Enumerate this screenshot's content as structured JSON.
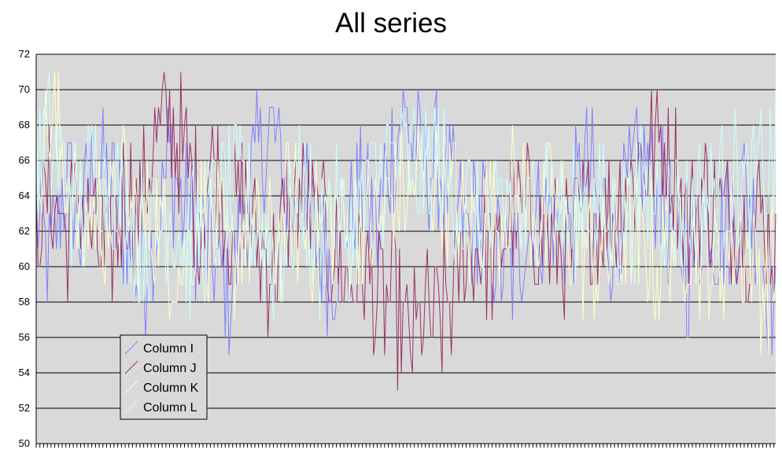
{
  "chart_data": {
    "type": "line",
    "title": "All series",
    "xlabel": "",
    "ylabel": "",
    "ylim": [
      50,
      72
    ],
    "yticks": [
      50,
      52,
      54,
      56,
      58,
      60,
      62,
      64,
      66,
      68,
      70,
      72
    ],
    "grid": true,
    "legend_position": "bottom-left",
    "plot_background": "#d9d9d9",
    "n_points": 400,
    "series": [
      {
        "name": "Column I",
        "color": "#8080ff",
        "keypoints": [
          [
            0,
            63
          ],
          [
            8,
            60
          ],
          [
            16,
            65
          ],
          [
            24,
            62
          ],
          [
            32,
            66
          ],
          [
            40,
            64
          ],
          [
            48,
            62
          ],
          [
            56,
            59
          ],
          [
            64,
            62
          ],
          [
            72,
            66
          ],
          [
            80,
            63
          ],
          [
            88,
            62
          ],
          [
            96,
            60
          ],
          [
            104,
            58
          ],
          [
            112,
            63
          ],
          [
            120,
            66
          ],
          [
            128,
            68
          ],
          [
            136,
            63
          ],
          [
            144,
            64
          ],
          [
            152,
            61
          ],
          [
            160,
            60
          ],
          [
            168,
            63
          ],
          [
            176,
            64
          ],
          [
            184,
            62
          ],
          [
            192,
            67
          ],
          [
            200,
            68
          ],
          [
            208,
            66
          ],
          [
            216,
            66
          ],
          [
            224,
            64
          ],
          [
            232,
            62
          ],
          [
            240,
            63
          ],
          [
            248,
            61
          ],
          [
            256,
            59
          ],
          [
            264,
            62
          ],
          [
            272,
            63
          ],
          [
            280,
            63
          ],
          [
            288,
            62
          ],
          [
            296,
            66
          ],
          [
            304,
            63
          ],
          [
            312,
            62
          ],
          [
            320,
            64
          ],
          [
            328,
            66
          ],
          [
            336,
            64
          ],
          [
            344,
            62
          ],
          [
            352,
            60
          ],
          [
            360,
            63
          ],
          [
            368,
            62
          ],
          [
            376,
            63
          ],
          [
            384,
            64
          ],
          [
            392,
            61
          ],
          [
            399,
            57
          ]
        ]
      },
      {
        "name": "Column J",
        "color": "#993366",
        "keypoints": [
          [
            0,
            62
          ],
          [
            8,
            64
          ],
          [
            16,
            62
          ],
          [
            24,
            64
          ],
          [
            32,
            61
          ],
          [
            40,
            60
          ],
          [
            48,
            64
          ],
          [
            56,
            63
          ],
          [
            64,
            67
          ],
          [
            72,
            68
          ],
          [
            80,
            66
          ],
          [
            88,
            63
          ],
          [
            96,
            66
          ],
          [
            104,
            62
          ],
          [
            112,
            64
          ],
          [
            120,
            61
          ],
          [
            128,
            60
          ],
          [
            136,
            63
          ],
          [
            144,
            64
          ],
          [
            152,
            62
          ],
          [
            160,
            61
          ],
          [
            168,
            59
          ],
          [
            176,
            60
          ],
          [
            184,
            58
          ],
          [
            192,
            58
          ],
          [
            200,
            56
          ],
          [
            208,
            56.5
          ],
          [
            216,
            57
          ],
          [
            224,
            58
          ],
          [
            232,
            61
          ],
          [
            240,
            61
          ],
          [
            248,
            60
          ],
          [
            256,
            63
          ],
          [
            264,
            63
          ],
          [
            272,
            62
          ],
          [
            280,
            61
          ],
          [
            288,
            61
          ],
          [
            296,
            63
          ],
          [
            304,
            63
          ],
          [
            312,
            63
          ],
          [
            320,
            65
          ],
          [
            328,
            66
          ],
          [
            336,
            67
          ],
          [
            344,
            66
          ],
          [
            352,
            62
          ],
          [
            360,
            64
          ],
          [
            368,
            63
          ],
          [
            376,
            63
          ],
          [
            384,
            62
          ],
          [
            392,
            63
          ],
          [
            399,
            61
          ]
        ]
      },
      {
        "name": "Column K",
        "color": "#ffffcc",
        "keypoints": [
          [
            0,
            66
          ],
          [
            8,
            68
          ],
          [
            16,
            66
          ],
          [
            24,
            62
          ],
          [
            32,
            63
          ],
          [
            40,
            63
          ],
          [
            48,
            64
          ],
          [
            56,
            62
          ],
          [
            64,
            63
          ],
          [
            72,
            61
          ],
          [
            80,
            60
          ],
          [
            88,
            63
          ],
          [
            96,
            62
          ],
          [
            104,
            60
          ],
          [
            112,
            62
          ],
          [
            120,
            61
          ],
          [
            128,
            61
          ],
          [
            136,
            63
          ],
          [
            144,
            62
          ],
          [
            152,
            62
          ],
          [
            160,
            63
          ],
          [
            168,
            62
          ],
          [
            176,
            63
          ],
          [
            184,
            62
          ],
          [
            192,
            64
          ],
          [
            200,
            64
          ],
          [
            208,
            65
          ],
          [
            216,
            65
          ],
          [
            224,
            64
          ],
          [
            232,
            62
          ],
          [
            240,
            63
          ],
          [
            248,
            63
          ],
          [
            256,
            64
          ],
          [
            264,
            64
          ],
          [
            272,
            62
          ],
          [
            280,
            63
          ],
          [
            288,
            62
          ],
          [
            296,
            61
          ],
          [
            304,
            60
          ],
          [
            312,
            61
          ],
          [
            320,
            62
          ],
          [
            328,
            61
          ],
          [
            336,
            60
          ],
          [
            344,
            62
          ],
          [
            352,
            62
          ],
          [
            360,
            61
          ],
          [
            368,
            60
          ],
          [
            376,
            62
          ],
          [
            384,
            61
          ],
          [
            392,
            59
          ],
          [
            399,
            60
          ]
        ]
      },
      {
        "name": "Column L",
        "color": "#ccffff",
        "keypoints": [
          [
            0,
            66
          ],
          [
            8,
            67
          ],
          [
            16,
            65
          ],
          [
            24,
            63
          ],
          [
            32,
            66
          ],
          [
            40,
            65
          ],
          [
            48,
            63
          ],
          [
            56,
            62
          ],
          [
            64,
            62
          ],
          [
            72,
            63
          ],
          [
            80,
            61
          ],
          [
            88,
            62
          ],
          [
            96,
            63
          ],
          [
            104,
            64
          ],
          [
            112,
            64
          ],
          [
            120,
            62
          ],
          [
            128,
            60
          ],
          [
            136,
            62
          ],
          [
            144,
            64
          ],
          [
            152,
            61
          ],
          [
            160,
            63
          ],
          [
            168,
            62
          ],
          [
            176,
            63
          ],
          [
            184,
            65
          ],
          [
            192,
            66
          ],
          [
            200,
            66
          ],
          [
            208,
            65
          ],
          [
            216,
            66
          ],
          [
            224,
            64
          ],
          [
            232,
            63
          ],
          [
            240,
            62
          ],
          [
            248,
            62
          ],
          [
            256,
            64
          ],
          [
            264,
            62
          ],
          [
            272,
            65
          ],
          [
            280,
            64
          ],
          [
            288,
            62
          ],
          [
            296,
            64
          ],
          [
            304,
            63
          ],
          [
            312,
            62
          ],
          [
            320,
            63
          ],
          [
            328,
            64
          ],
          [
            336,
            64
          ],
          [
            344,
            63
          ],
          [
            352,
            63
          ],
          [
            360,
            64
          ],
          [
            368,
            64
          ],
          [
            376,
            65
          ],
          [
            384,
            64
          ],
          [
            392,
            65
          ],
          [
            399,
            66
          ]
        ]
      }
    ]
  }
}
